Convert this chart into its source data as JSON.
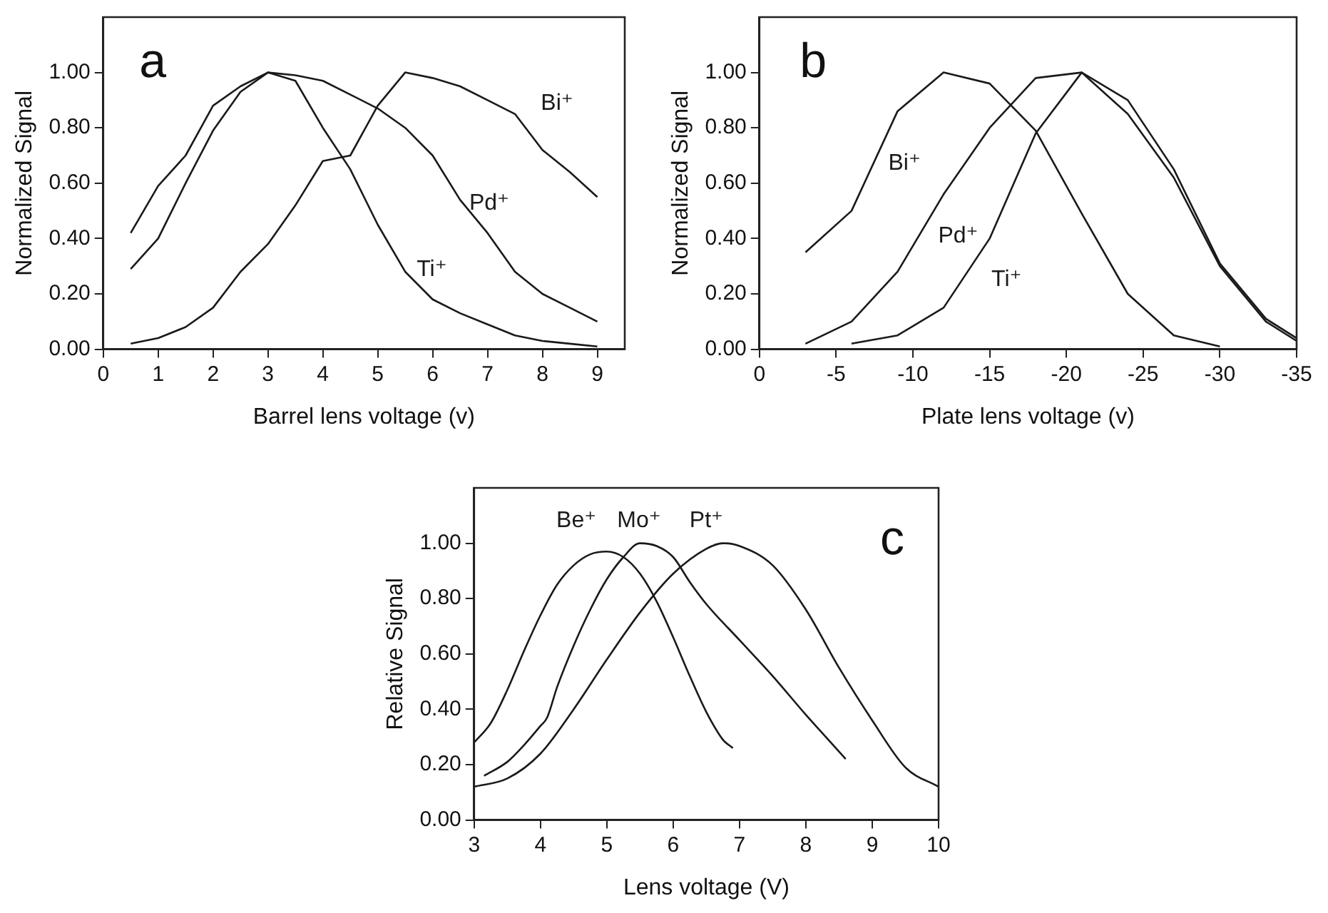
{
  "chart_data": [
    {
      "type": "line",
      "title": "a",
      "xlabel": "Barrel lens voltage (v)",
      "ylabel": "Normalized Signal",
      "xlim": [
        0,
        9.5
      ],
      "xticks": [
        0,
        1,
        2,
        3,
        4,
        5,
        6,
        7,
        8,
        9
      ],
      "ylim": [
        0,
        1.2
      ],
      "yticks": [
        {
          "value": 0,
          "label": "0.00"
        },
        {
          "value": 0.2,
          "label": "0.20"
        },
        {
          "value": 0.4,
          "label": "0.40"
        },
        {
          "value": 0.6,
          "label": "0.60"
        },
        {
          "value": 0.8,
          "label": "0.80"
        },
        {
          "value": 1,
          "label": "1.00"
        }
      ],
      "legend": false,
      "marker": "none",
      "x": [
        0.5,
        1,
        1.5,
        2,
        2.5,
        3,
        3.5,
        4,
        4.5,
        5,
        5.5,
        6,
        6.5,
        7,
        7.5,
        8,
        8.5,
        9
      ],
      "series": [
        {
          "name": "Bi⁺",
          "color": "#1a1a1a",
          "values": [
            0.02,
            0.04,
            0.08,
            0.15,
            0.28,
            0.38,
            0.52,
            0.68,
            0.7,
            0.88,
            1.0,
            0.98,
            0.95,
            0.9,
            0.85,
            0.72,
            0.64,
            0.55
          ]
        },
        {
          "name": "Pd⁺",
          "color": "#1a1a1a",
          "values": [
            0.29,
            0.4,
            0.6,
            0.79,
            0.93,
            1.0,
            0.99,
            0.97,
            0.92,
            0.87,
            0.8,
            0.7,
            0.54,
            0.42,
            0.28,
            0.2,
            0.15,
            0.1
          ]
        },
        {
          "name": "Ti⁺",
          "color": "#1a1a1a",
          "values": [
            0.42,
            0.59,
            0.7,
            0.88,
            0.95,
            1.0,
            0.97,
            0.8,
            0.65,
            0.45,
            0.28,
            0.18,
            0.13,
            0.09,
            0.05,
            0.03,
            0.02,
            0.01
          ]
        }
      ]
    },
    {
      "type": "line",
      "title": "b",
      "xlabel": "Plate lens voltage (v)",
      "ylabel": "Normalized Signal",
      "xlim": [
        0,
        -35
      ],
      "xticks": [
        0,
        -5,
        -10,
        -15,
        -20,
        -25,
        -30,
        -35
      ],
      "ylim": [
        0,
        1.2
      ],
      "yticks": [
        {
          "value": 0,
          "label": "0.00"
        },
        {
          "value": 0.2,
          "label": "0.20"
        },
        {
          "value": 0.4,
          "label": "0.40"
        },
        {
          "value": 0.6,
          "label": "0.60"
        },
        {
          "value": 0.8,
          "label": "0.80"
        },
        {
          "value": 1,
          "label": "1.00"
        }
      ],
      "legend": false,
      "marker": "none",
      "series": [
        {
          "name": "Bi⁺",
          "color": "#1a1a1a",
          "x": [
            -3,
            -6,
            -9,
            -12,
            -15,
            -18,
            -21,
            -24,
            -27,
            -30
          ],
          "values": [
            0.35,
            0.5,
            0.86,
            1.0,
            0.96,
            0.79,
            0.49,
            0.2,
            0.05,
            0.01
          ]
        },
        {
          "name": "Pd⁺",
          "color": "#1a1a1a",
          "x": [
            -3,
            -6,
            -9,
            -12,
            -15,
            -18,
            -21,
            -24,
            -27,
            -30,
            -33,
            -35
          ],
          "values": [
            0.02,
            0.1,
            0.28,
            0.56,
            0.8,
            0.98,
            1.0,
            0.85,
            0.62,
            0.3,
            0.1,
            0.03
          ]
        },
        {
          "name": "Ti⁺",
          "color": "#1a1a1a",
          "x": [
            -6,
            -9,
            -12,
            -15,
            -18,
            -21,
            -24,
            -27,
            -30,
            -33,
            -35
          ],
          "values": [
            0.02,
            0.05,
            0.15,
            0.4,
            0.78,
            1.0,
            0.9,
            0.65,
            0.31,
            0.11,
            0.04
          ]
        }
      ]
    },
    {
      "type": "line",
      "title": "c",
      "xlabel": "Lens voltage (V)",
      "ylabel": "Relative Signal",
      "xlim": [
        3,
        10
      ],
      "xticks": [
        3,
        4,
        5,
        6,
        7,
        8,
        9,
        10
      ],
      "ylim": [
        0,
        1.2
      ],
      "yticks": [
        {
          "value": 0,
          "label": "0.00"
        },
        {
          "value": 0.2,
          "label": "0.20"
        },
        {
          "value": 0.4,
          "label": "0.40"
        },
        {
          "value": 0.6,
          "label": "0.60"
        },
        {
          "value": 0.8,
          "label": "0.80"
        },
        {
          "value": 1,
          "label": "1.00"
        }
      ],
      "legend": false,
      "marker": "none",
      "series": [
        {
          "name": "Be⁺",
          "color": "#1a1a1a",
          "x": [
            3,
            3.25,
            3.5,
            3.75,
            4,
            4.25,
            4.5,
            4.75,
            5,
            5.25,
            5.5,
            5.75,
            6,
            6.25,
            6.5,
            6.75,
            6.9
          ],
          "values": [
            0.28,
            0.35,
            0.47,
            0.61,
            0.74,
            0.85,
            0.92,
            0.96,
            0.97,
            0.95,
            0.89,
            0.79,
            0.66,
            0.52,
            0.39,
            0.29,
            0.26
          ]
        },
        {
          "name": "Mo⁺",
          "color": "#1a1a1a",
          "x": [
            3.15,
            3.5,
            3.75,
            4,
            4.1,
            4.25,
            4.5,
            4.75,
            5,
            5.25,
            5.5,
            5.75,
            6,
            6.25,
            6.5,
            7,
            7.5,
            8,
            8.3,
            8.6
          ],
          "values": [
            0.16,
            0.21,
            0.27,
            0.34,
            0.37,
            0.48,
            0.63,
            0.76,
            0.87,
            0.95,
            1.0,
            0.99,
            0.95,
            0.86,
            0.78,
            0.65,
            0.52,
            0.38,
            0.3,
            0.22
          ]
        },
        {
          "name": "Pt⁺",
          "color": "#1a1a1a",
          "x": [
            3,
            3.5,
            4,
            4.5,
            5,
            5.5,
            6,
            6.5,
            6.75,
            7,
            7.5,
            8,
            8.5,
            9,
            9.5,
            10
          ],
          "values": [
            0.12,
            0.15,
            0.24,
            0.4,
            0.58,
            0.75,
            0.89,
            0.98,
            1.0,
            0.99,
            0.92,
            0.76,
            0.55,
            0.36,
            0.19,
            0.12
          ]
        }
      ]
    }
  ]
}
